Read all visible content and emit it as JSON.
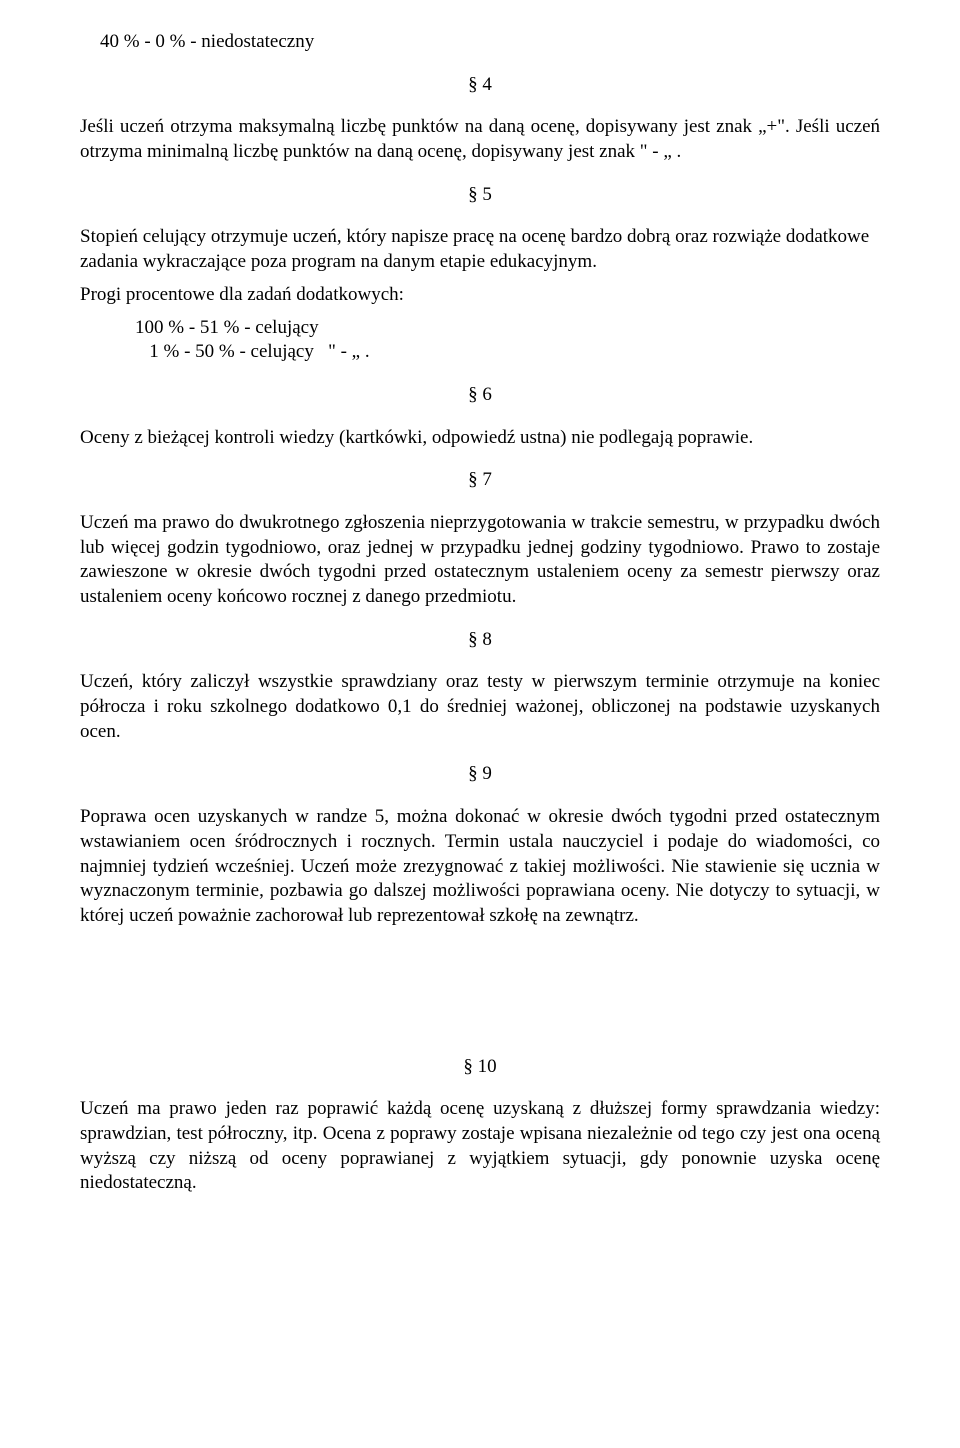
{
  "top_line": "40 %   -  0 %       - niedostateczny",
  "sec4": {
    "num": "§ 4",
    "p1": "Jeśli uczeń otrzyma maksymalną liczbę punktów na daną ocenę, dopisywany jest znak „+\". Jeśli uczeń otrzyma minimalną liczbę punktów na daną ocenę, dopisywany jest znak \" - „ ."
  },
  "sec5": {
    "num": "§ 5",
    "p1": "Stopień celujący otrzymuje uczeń, który napisze pracę na ocenę bardzo dobrą oraz rozwiąże dodatkowe zadania wykraczające poza program na danym etapie edukacyjnym.",
    "p2": "Progi procentowe dla zadań dodatkowych:",
    "list1": "100 % - 51 % - celujący",
    "list2": "   1 % - 50 % - celujący   \" - „ ."
  },
  "sec6": {
    "num": "§ 6",
    "p1": "Oceny z bieżącej kontroli wiedzy (kartkówki, odpowiedź ustna) nie podlegają poprawie."
  },
  "sec7": {
    "num": "§ 7",
    "p1": "Uczeń ma prawo do dwukrotnego zgłoszenia nieprzygotowania w trakcie semestru, w przypadku dwóch lub więcej godzin tygodniowo, oraz jednej w przypadku jednej godziny tygodniowo. Prawo to zostaje zawieszone w okresie dwóch tygodni przed ostatecznym ustaleniem oceny za semestr pierwszy oraz ustaleniem oceny końcowo rocznej z danego przedmiotu."
  },
  "sec8": {
    "num": "§ 8",
    "p1": "Uczeń, który zaliczył wszystkie sprawdziany oraz testy w pierwszym terminie otrzymuje na koniec półrocza i roku szkolnego dodatkowo 0,1 do średniej ważonej, obliczonej na podstawie uzyskanych ocen."
  },
  "sec9": {
    "num": "§ 9",
    "p1": "Poprawa ocen uzyskanych w randze 5, można dokonać w okresie dwóch tygodni przed ostatecznym wstawianiem ocen śródrocznych i rocznych. Termin ustala nauczyciel i podaje do wiadomości, co najmniej tydzień wcześniej. Uczeń może zrezygnować z takiej możliwości. Nie stawienie się ucznia w wyznaczonym terminie, pozbawia go dalszej możliwości poprawiana oceny. Nie dotyczy to sytuacji, w której uczeń poważnie zachorował lub reprezentował szkołę na zewnątrz."
  },
  "sec10": {
    "num": "§ 10",
    "p1": "Uczeń ma prawo jeden raz poprawić każdą ocenę uzyskaną z dłuższej formy sprawdzania wiedzy: sprawdzian, test półroczny, itp. Ocena z poprawy zostaje wpisana niezależnie od tego czy jest ona oceną wyższą czy niższą od oceny poprawianej z wyjątkiem  sytuacji, gdy ponownie uzyska ocenę niedostateczną."
  }
}
